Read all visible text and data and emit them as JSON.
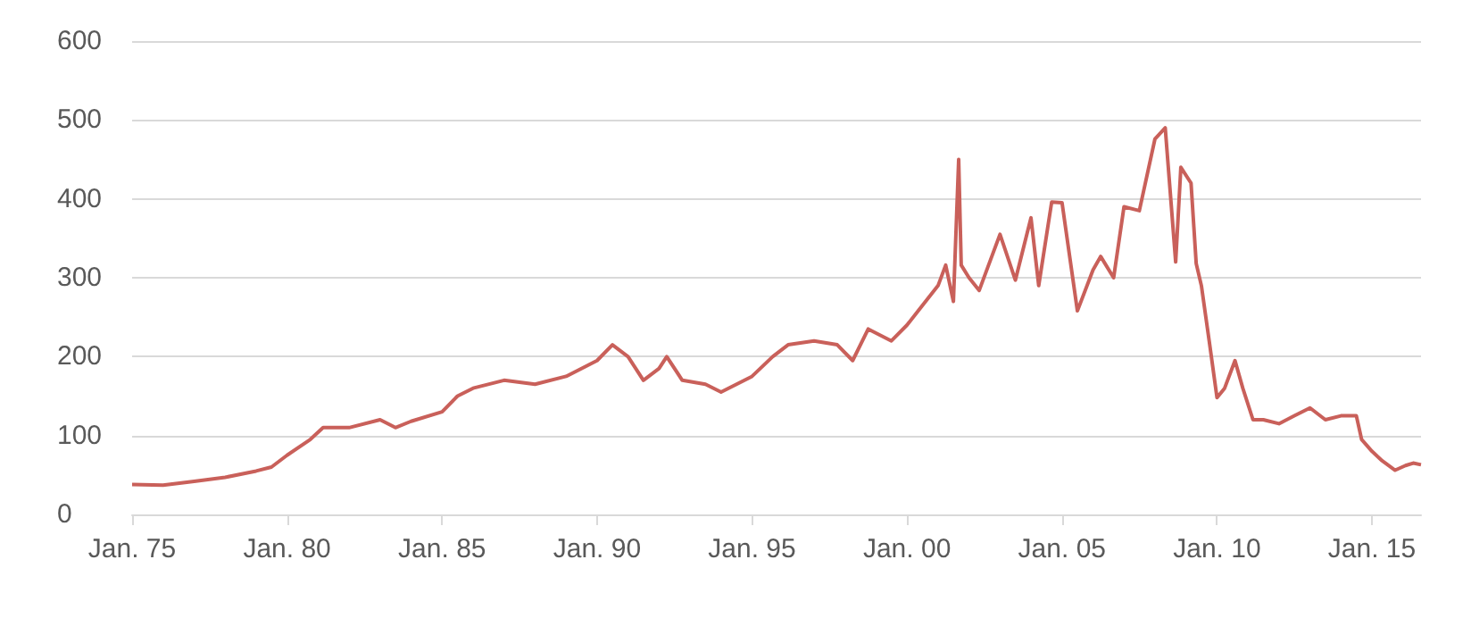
{
  "chart_data": {
    "type": "line",
    "x": [
      "1975-01",
      "1976-01",
      "1977-01",
      "1978-01",
      "1979-01",
      "1979-07",
      "1980-01",
      "1980-10",
      "1981-03",
      "1982-01",
      "1983-01",
      "1983-07",
      "1984-01",
      "1985-01",
      "1985-07",
      "1986-01",
      "1987-01",
      "1988-01",
      "1989-01",
      "1990-01",
      "1990-07",
      "1991-01",
      "1991-07",
      "1992-01",
      "1992-04",
      "1992-10",
      "1993-07",
      "1994-01",
      "1995-01",
      "1995-09",
      "1996-03",
      "1997-01",
      "1997-10",
      "1998-04",
      "1998-10",
      "1999-07",
      "2000-01",
      "2000-07",
      "2001-01",
      "2001-04",
      "2001-07",
      "2001-09",
      "2001-10",
      "2002-01",
      "2002-05",
      "2003-01",
      "2003-07",
      "2004-01",
      "2004-04",
      "2004-09",
      "2005-01",
      "2005-07",
      "2006-01",
      "2006-04",
      "2006-09",
      "2007-01",
      "2007-07",
      "2008-01",
      "2008-05",
      "2008-09",
      "2008-11",
      "2009-03",
      "2009-05",
      "2009-07",
      "2009-10",
      "2010-01",
      "2010-04",
      "2010-08",
      "2010-11",
      "2011-03",
      "2011-07",
      "2012-01",
      "2012-07",
      "2013-01",
      "2013-07",
      "2014-01",
      "2014-07",
      "2014-09",
      "2015-01",
      "2015-05",
      "2015-10",
      "2016-02",
      "2016-05",
      "2016-08"
    ],
    "series": [
      {
        "color": "#c9605a",
        "values": [
          38,
          37,
          42,
          47,
          55,
          60,
          75,
          95,
          110,
          110,
          120,
          110,
          118,
          130,
          150,
          160,
          170,
          165,
          175,
          195,
          215,
          200,
          170,
          185,
          200,
          170,
          165,
          155,
          175,
          200,
          215,
          220,
          215,
          195,
          235,
          220,
          240,
          265,
          290,
          316,
          270,
          450,
          316,
          300,
          284,
          355,
          297,
          376,
          290,
          396,
          395,
          258,
          310,
          327,
          300,
          390,
          385,
          476,
          490,
          320,
          440,
          420,
          318,
          290,
          220,
          148,
          160,
          195,
          160,
          120,
          120,
          115,
          125,
          135,
          120,
          125,
          125,
          95,
          80,
          68,
          56,
          62,
          65,
          63
        ]
      }
    ],
    "xlim": [
      "1975-01",
      "2016-08"
    ],
    "xticks": [
      {
        "value": "1975-01",
        "label": "Jan. 75"
      },
      {
        "value": "1980-01",
        "label": "Jan. 80"
      },
      {
        "value": "1985-01",
        "label": "Jan. 85"
      },
      {
        "value": "1990-01",
        "label": "Jan. 90"
      },
      {
        "value": "1995-01",
        "label": "Jan. 95"
      },
      {
        "value": "2000-01",
        "label": "Jan. 00"
      },
      {
        "value": "2005-01",
        "label": "Jan. 05"
      },
      {
        "value": "2010-01",
        "label": "Jan. 10"
      },
      {
        "value": "2015-01",
        "label": "Jan. 15"
      }
    ],
    "ylim": [
      0,
      600
    ],
    "yticks": [
      0,
      100,
      200,
      300,
      400,
      500,
      600
    ],
    "grid": "y",
    "marker": "none",
    "line_style": "solid"
  }
}
